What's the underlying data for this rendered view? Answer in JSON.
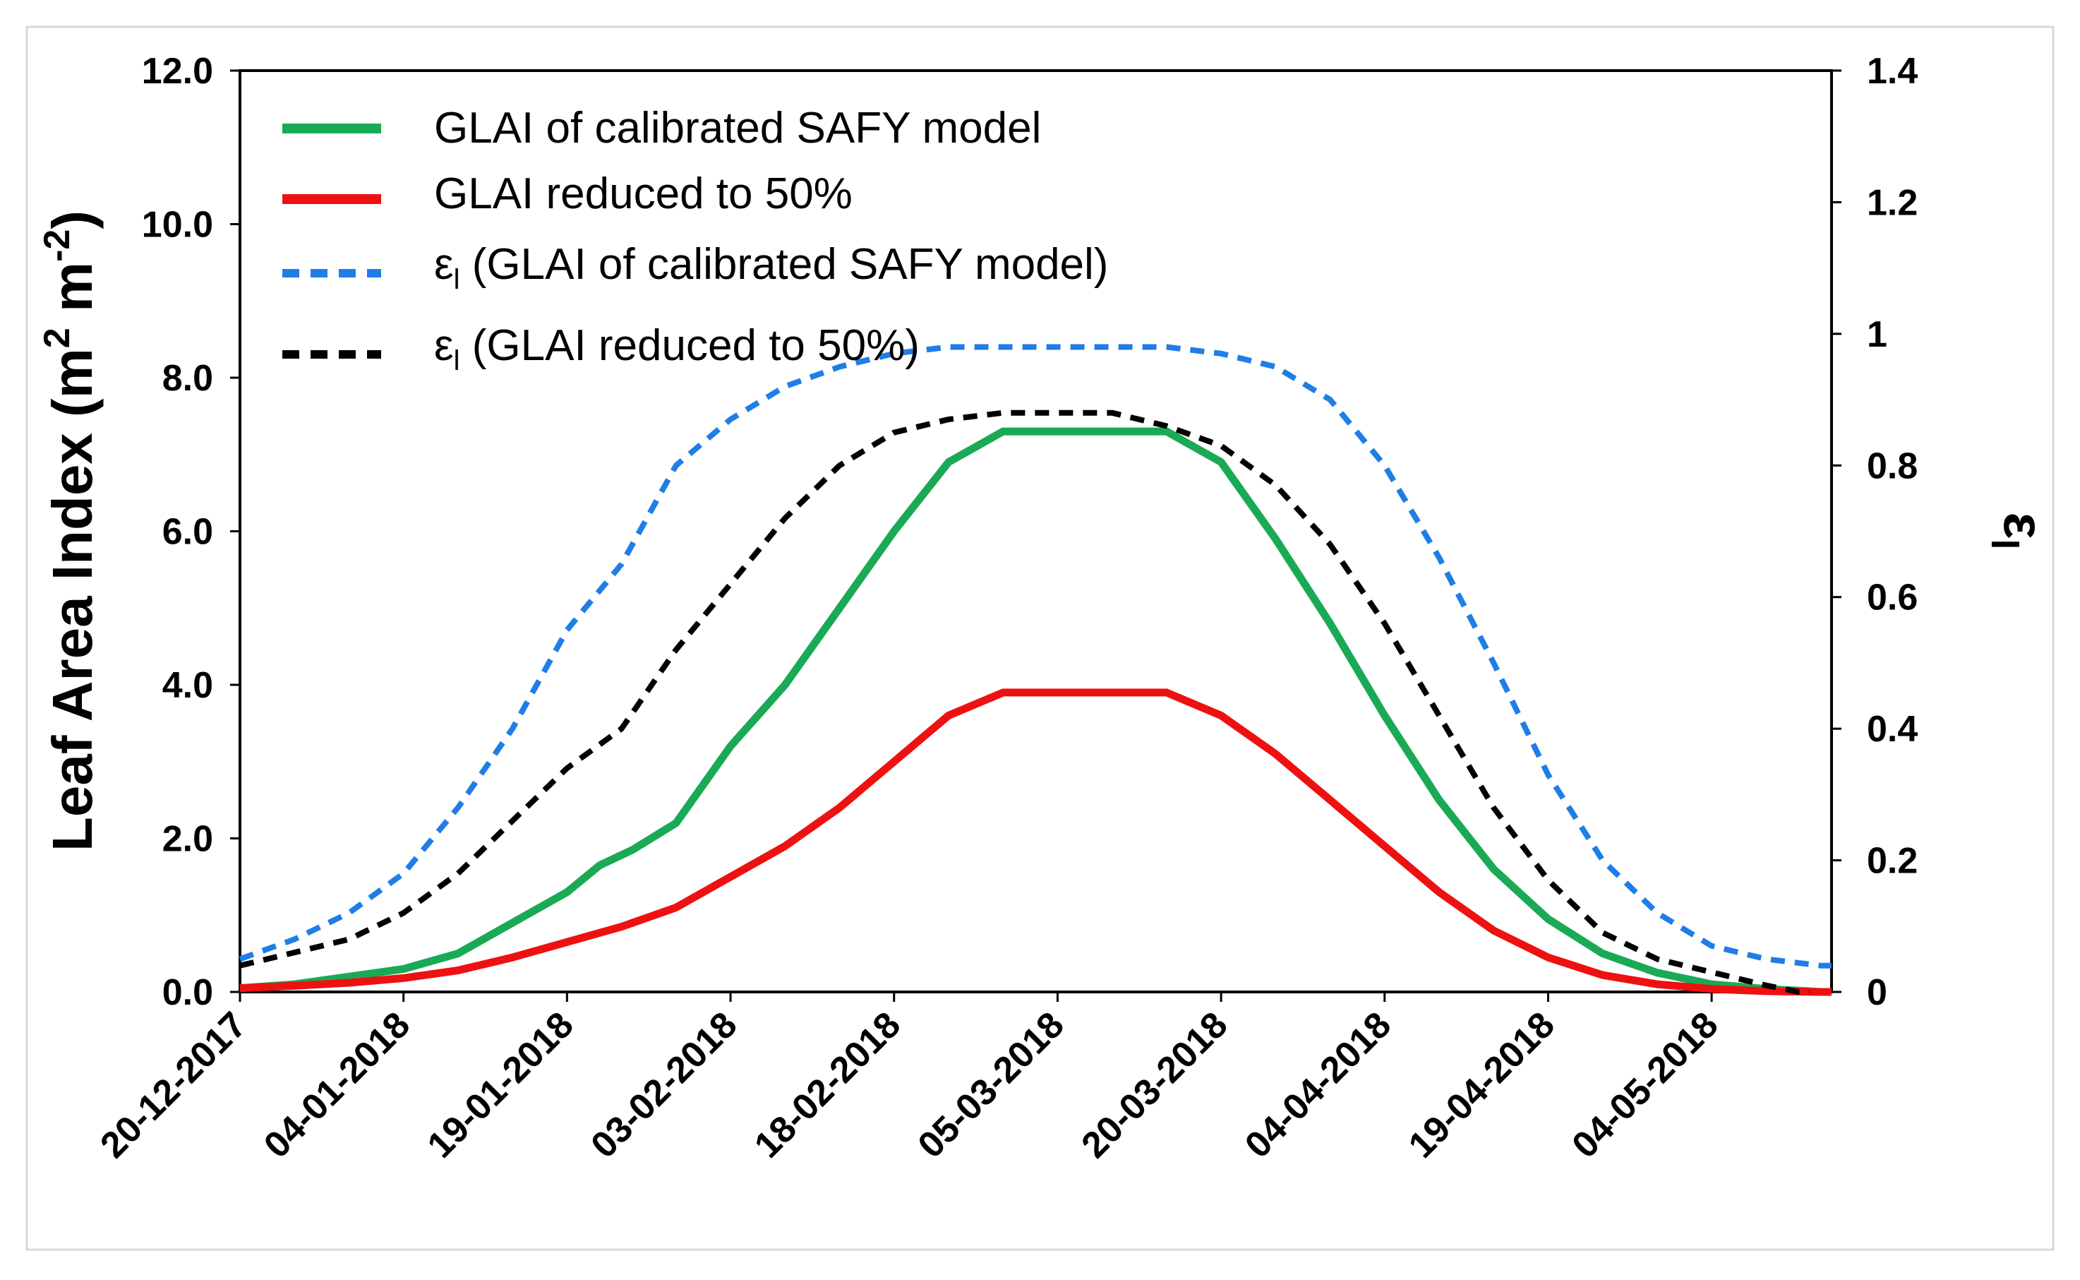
{
  "chart_data": {
    "type": "line",
    "title": "",
    "ylabel": {
      "base": "Leaf Area Index (m",
      "sup1": "2",
      "mid": " m",
      "sup2": "-2",
      "end": ")"
    },
    "y2label": {
      "base": "ε",
      "sub": "l"
    },
    "xlabel": "",
    "ylim": [
      0,
      12
    ],
    "y2lim": [
      0,
      1.4
    ],
    "x_range_days": [
      0,
      146
    ],
    "y_ticks": [
      "0.0",
      "2.0",
      "4.0",
      "6.0",
      "8.0",
      "10.0",
      "12.0"
    ],
    "y2_ticks": [
      "0",
      "0.2",
      "0.4",
      "0.6",
      "0.8",
      "1",
      "1.2",
      "1.4"
    ],
    "x_ticks": [
      {
        "label": "20-12-2017",
        "day": 0
      },
      {
        "label": "04-01-2018",
        "day": 15
      },
      {
        "label": "19-01-2018",
        "day": 30
      },
      {
        "label": "03-02-2018",
        "day": 45
      },
      {
        "label": "18-02-2018",
        "day": 60
      },
      {
        "label": "05-03-2018",
        "day": 75
      },
      {
        "label": "20-03-2018",
        "day": 90
      },
      {
        "label": "04-04-2018",
        "day": 105
      },
      {
        "label": "19-04-2018",
        "day": 120
      },
      {
        "label": "04-05-2018",
        "day": 135
      }
    ],
    "series": [
      {
        "name": "GLAI of calibrated SAFY model",
        "axis": "left",
        "color": "#1aaa55",
        "dash": "solid",
        "x": [
          0,
          5,
          10,
          15,
          20,
          25,
          30,
          33,
          36,
          40,
          45,
          50,
          55,
          60,
          65,
          70,
          75,
          80,
          85,
          90,
          95,
          100,
          105,
          110,
          115,
          120,
          125,
          130,
          135,
          140,
          145,
          146
        ],
        "y": [
          0.05,
          0.1,
          0.2,
          0.3,
          0.5,
          0.9,
          1.3,
          1.65,
          1.85,
          2.2,
          3.2,
          4.0,
          5.0,
          6.0,
          6.9,
          7.3,
          7.3,
          7.3,
          7.3,
          6.9,
          5.9,
          4.8,
          3.6,
          2.5,
          1.6,
          0.95,
          0.5,
          0.25,
          0.1,
          0.04,
          0.0,
          0.0
        ]
      },
      {
        "name": "GLAI reduced to 50%",
        "axis": "left",
        "color": "#ee1111",
        "dash": "solid",
        "x": [
          0,
          5,
          10,
          15,
          20,
          25,
          30,
          35,
          40,
          45,
          50,
          55,
          60,
          65,
          70,
          75,
          80,
          85,
          90,
          95,
          100,
          105,
          110,
          115,
          120,
          125,
          130,
          135,
          140,
          145,
          146
        ],
        "y": [
          0.05,
          0.08,
          0.12,
          0.18,
          0.28,
          0.45,
          0.65,
          0.85,
          1.1,
          1.5,
          1.9,
          2.4,
          3.0,
          3.6,
          3.9,
          3.9,
          3.9,
          3.9,
          3.6,
          3.1,
          2.5,
          1.9,
          1.3,
          0.8,
          0.45,
          0.22,
          0.1,
          0.04,
          0.01,
          0.0,
          0.0
        ]
      },
      {
        "name": "ε_l (GLAI of calibrated SAFY model)",
        "axis": "right",
        "color": "#1f7ee6",
        "dash": "dashed",
        "x": [
          0,
          5,
          10,
          15,
          20,
          25,
          30,
          35,
          40,
          45,
          50,
          55,
          60,
          65,
          70,
          75,
          80,
          85,
          90,
          95,
          100,
          105,
          110,
          115,
          120,
          125,
          130,
          135,
          140,
          145,
          146
        ],
        "y": [
          0.05,
          0.08,
          0.12,
          0.18,
          0.28,
          0.4,
          0.55,
          0.65,
          0.8,
          0.87,
          0.92,
          0.95,
          0.97,
          0.98,
          0.98,
          0.98,
          0.98,
          0.98,
          0.97,
          0.95,
          0.9,
          0.8,
          0.66,
          0.5,
          0.33,
          0.2,
          0.12,
          0.07,
          0.05,
          0.04,
          0.04
        ]
      },
      {
        "name": "ε_l (GLAI reduced to 50%)",
        "axis": "right",
        "color": "#000000",
        "dash": "dashed",
        "x": [
          0,
          5,
          10,
          15,
          20,
          25,
          30,
          35,
          40,
          45,
          50,
          55,
          60,
          65,
          70,
          75,
          80,
          85,
          90,
          95,
          100,
          105,
          110,
          115,
          120,
          125,
          130,
          135,
          140,
          143,
          144
        ],
        "y": [
          0.04,
          0.06,
          0.08,
          0.12,
          0.18,
          0.26,
          0.34,
          0.4,
          0.52,
          0.62,
          0.72,
          0.8,
          0.85,
          0.87,
          0.88,
          0.88,
          0.88,
          0.86,
          0.83,
          0.77,
          0.68,
          0.56,
          0.42,
          0.28,
          0.17,
          0.09,
          0.05,
          0.03,
          0.01,
          0.0,
          0.0
        ]
      }
    ],
    "legend": {
      "position": "top-left",
      "entries": [
        {
          "text": "GLAI of calibrated SAFY model"
        },
        {
          "text": "GLAI reduced to 50%"
        },
        {
          "prefix": "ε",
          "sub": "l",
          "text": " (GLAI of calibrated SAFY model)"
        },
        {
          "prefix": "ε",
          "sub": "l",
          "text": " (GLAI reduced to 50%)"
        }
      ]
    }
  }
}
